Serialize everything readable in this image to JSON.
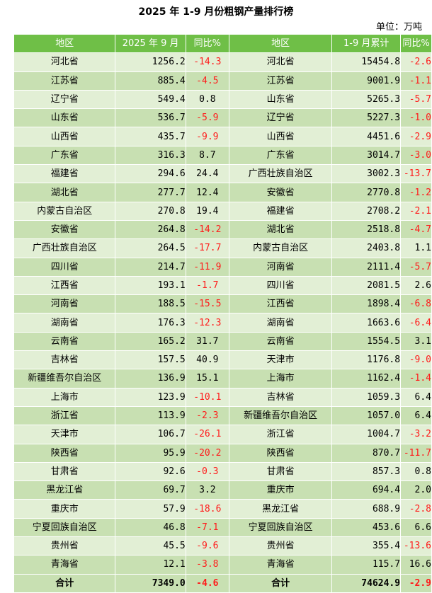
{
  "title": "2025 年 1-9 月份粗钢产量排行榜",
  "unit": "单位：万吨",
  "headers": {
    "region_left": "地区",
    "month": "2025 年 9 月",
    "yoy_left": "同比%",
    "region_right": "地区",
    "cumulative": "1-9 月累计",
    "yoy_right": "同比%"
  },
  "rows": [
    {
      "region_left": "河北省",
      "month": "1256.2",
      "yoy_left": "-14.3",
      "region_right": "河北省",
      "cumulative": "15454.8",
      "yoy_right": "-2.6"
    },
    {
      "region_left": "江苏省",
      "month": "885.4",
      "yoy_left": "-4.5",
      "region_right": "江苏省",
      "cumulative": "9001.9",
      "yoy_right": "-1.1"
    },
    {
      "region_left": "辽宁省",
      "month": "549.4",
      "yoy_left": "0.8",
      "region_right": "山东省",
      "cumulative": "5265.3",
      "yoy_right": "-5.7"
    },
    {
      "region_left": "山东省",
      "month": "536.7",
      "yoy_left": "-5.9",
      "region_right": "辽宁省",
      "cumulative": "5227.3",
      "yoy_right": "-1.0"
    },
    {
      "region_left": "山西省",
      "month": "435.7",
      "yoy_left": "-9.9",
      "region_right": "山西省",
      "cumulative": "4451.6",
      "yoy_right": "-2.9"
    },
    {
      "region_left": "广东省",
      "month": "316.3",
      "yoy_left": "8.7",
      "region_right": "广东省",
      "cumulative": "3014.7",
      "yoy_right": "-3.0"
    },
    {
      "region_left": "福建省",
      "month": "294.6",
      "yoy_left": "24.4",
      "region_right": "广西壮族自治区",
      "cumulative": "3002.3",
      "yoy_right": "-13.7"
    },
    {
      "region_left": "湖北省",
      "month": "277.7",
      "yoy_left": "12.4",
      "region_right": "安徽省",
      "cumulative": "2770.8",
      "yoy_right": "-1.2"
    },
    {
      "region_left": "内蒙古自治区",
      "month": "270.8",
      "yoy_left": "19.4",
      "region_right": "福建省",
      "cumulative": "2708.2",
      "yoy_right": "-2.1"
    },
    {
      "region_left": "安徽省",
      "month": "264.8",
      "yoy_left": "-14.2",
      "region_right": "湖北省",
      "cumulative": "2518.8",
      "yoy_right": "-4.7"
    },
    {
      "region_left": "广西壮族自治区",
      "month": "264.5",
      "yoy_left": "-17.7",
      "region_right": "内蒙古自治区",
      "cumulative": "2403.8",
      "yoy_right": "1.1"
    },
    {
      "region_left": "四川省",
      "month": "214.7",
      "yoy_left": "-11.9",
      "region_right": "河南省",
      "cumulative": "2111.4",
      "yoy_right": "-5.7"
    },
    {
      "region_left": "江西省",
      "month": "193.1",
      "yoy_left": "-1.7",
      "region_right": "四川省",
      "cumulative": "2081.5",
      "yoy_right": "2.6"
    },
    {
      "region_left": "河南省",
      "month": "188.5",
      "yoy_left": "-15.5",
      "region_right": "江西省",
      "cumulative": "1898.4",
      "yoy_right": "-6.8"
    },
    {
      "region_left": "湖南省",
      "month": "176.3",
      "yoy_left": "-12.3",
      "region_right": "湖南省",
      "cumulative": "1663.6",
      "yoy_right": "-6.4"
    },
    {
      "region_left": "云南省",
      "month": "165.2",
      "yoy_left": "31.7",
      "region_right": "云南省",
      "cumulative": "1554.5",
      "yoy_right": "3.1"
    },
    {
      "region_left": "吉林省",
      "month": "157.5",
      "yoy_left": "40.9",
      "region_right": "天津市",
      "cumulative": "1176.8",
      "yoy_right": "-9.0"
    },
    {
      "region_left": "新疆维吾尔自治区",
      "month": "136.9",
      "yoy_left": "15.1",
      "region_right": "上海市",
      "cumulative": "1162.4",
      "yoy_right": "-1.4"
    },
    {
      "region_left": "上海市",
      "month": "123.9",
      "yoy_left": "-10.1",
      "region_right": "吉林省",
      "cumulative": "1059.3",
      "yoy_right": "6.4"
    },
    {
      "region_left": "浙江省",
      "month": "113.9",
      "yoy_left": "-2.3",
      "region_right": "新疆维吾尔自治区",
      "cumulative": "1057.0",
      "yoy_right": "6.4"
    },
    {
      "region_left": "天津市",
      "month": "106.7",
      "yoy_left": "-26.1",
      "region_right": "浙江省",
      "cumulative": "1004.7",
      "yoy_right": "-3.2"
    },
    {
      "region_left": "陕西省",
      "month": "95.9",
      "yoy_left": "-20.2",
      "region_right": "陕西省",
      "cumulative": "870.7",
      "yoy_right": "-11.7"
    },
    {
      "region_left": "甘肃省",
      "month": "92.6",
      "yoy_left": "-0.3",
      "region_right": "甘肃省",
      "cumulative": "857.3",
      "yoy_right": "0.8"
    },
    {
      "region_left": "黑龙江省",
      "month": "69.7",
      "yoy_left": "3.2",
      "region_right": "重庆市",
      "cumulative": "694.4",
      "yoy_right": "2.0"
    },
    {
      "region_left": "重庆市",
      "month": "57.9",
      "yoy_left": "-18.6",
      "region_right": "黑龙江省",
      "cumulative": "688.9",
      "yoy_right": "-2.8"
    },
    {
      "region_left": "宁夏回族自治区",
      "month": "46.8",
      "yoy_left": "-7.1",
      "region_right": "宁夏回族自治区",
      "cumulative": "453.6",
      "yoy_right": "6.6"
    },
    {
      "region_left": "贵州省",
      "month": "45.5",
      "yoy_left": "-9.6",
      "region_right": "贵州省",
      "cumulative": "355.4",
      "yoy_right": "-13.6"
    },
    {
      "region_left": "青海省",
      "month": "12.1",
      "yoy_left": "-3.8",
      "region_right": "青海省",
      "cumulative": "115.7",
      "yoy_right": "16.6"
    }
  ],
  "total": {
    "region_left": "合计",
    "month": "7349.0",
    "yoy_left": "-4.6",
    "region_right": "合计",
    "cumulative": "74624.9",
    "yoy_right": "-2.9"
  },
  "colors": {
    "header_bg": "#6fbf47",
    "row_light": "#e2efd5",
    "row_dark": "#c8e0b2",
    "negative_text": "#ff1a1a"
  }
}
